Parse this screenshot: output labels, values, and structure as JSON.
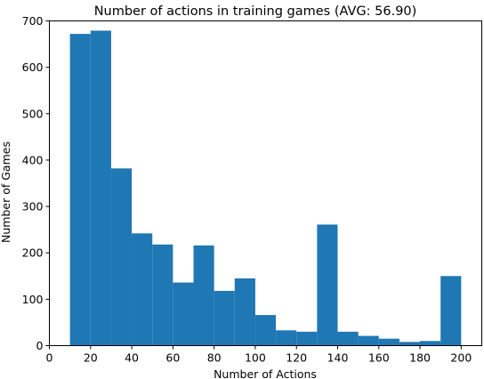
{
  "chart_data": {
    "type": "bar",
    "title": "Number of actions in training games (AVG: 56.90)",
    "xlabel": "Number of Actions",
    "ylabel": "Number of Games",
    "bin_edges": [
      10,
      20,
      30,
      40,
      50,
      60,
      70,
      80,
      90,
      100,
      110,
      120,
      130,
      140,
      150,
      160,
      170,
      180,
      190,
      200
    ],
    "values": [
      672,
      679,
      382,
      242,
      218,
      136,
      216,
      118,
      145,
      66,
      33,
      30,
      261,
      30,
      21,
      15,
      8,
      10,
      150
    ],
    "xlim": [
      0,
      210
    ],
    "ylim": [
      0,
      700
    ],
    "x_ticks": [
      0,
      20,
      40,
      60,
      80,
      100,
      120,
      140,
      160,
      180,
      200
    ],
    "y_ticks": [
      0,
      100,
      200,
      300,
      400,
      500,
      600,
      700
    ],
    "bar_color": "#1f77b4",
    "grid": false,
    "legend": "none"
  }
}
